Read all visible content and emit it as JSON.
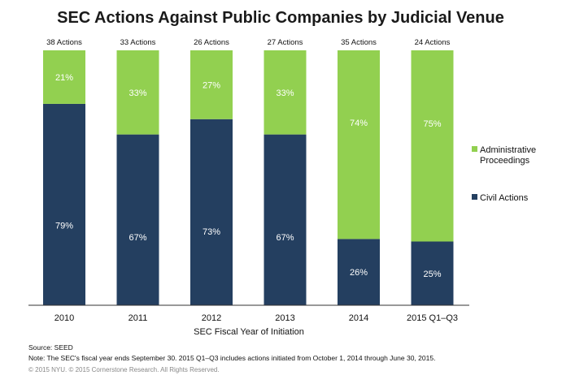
{
  "chart_data": {
    "type": "bar",
    "stacked": true,
    "title": "SEC Actions Against Public Companies by Judicial Venue",
    "xlabel": "SEC Fiscal Year of Initiation",
    "ylabel": "",
    "ylim": [
      0,
      100
    ],
    "unit": "%",
    "categories": [
      "2010",
      "2011",
      "2012",
      "2013",
      "2014",
      "2015 Q1–Q3"
    ],
    "totals": [
      "38 Actions",
      "33 Actions",
      "26 Actions",
      "27 Actions",
      "35 Actions",
      "24 Actions"
    ],
    "series": [
      {
        "name": "Civil Actions",
        "color": "#243F60",
        "values": [
          79,
          67,
          73,
          67,
          26,
          25
        ]
      },
      {
        "name": "Administrative Proceedings",
        "color": "#92D050",
        "values": [
          21,
          33,
          27,
          33,
          74,
          75
        ]
      }
    ],
    "legend": {
      "position": "right",
      "entries": [
        {
          "lines": [
            "Administrative",
            "Proceedings"
          ],
          "color": "#92D050"
        },
        {
          "lines": [
            "Civil Actions"
          ],
          "color": "#243F60"
        }
      ]
    },
    "grid": false
  },
  "footer": {
    "source": "Source:  SEED",
    "note": "Note:  The SEC's fiscal year ends September 30.  2015 Q1–Q3 includes actions initiated from October 1, 2014 through June 30, 2015.",
    "copyright": "© 2015 NYU. © 2015 Cornerstone Research. All Rights Reserved."
  }
}
